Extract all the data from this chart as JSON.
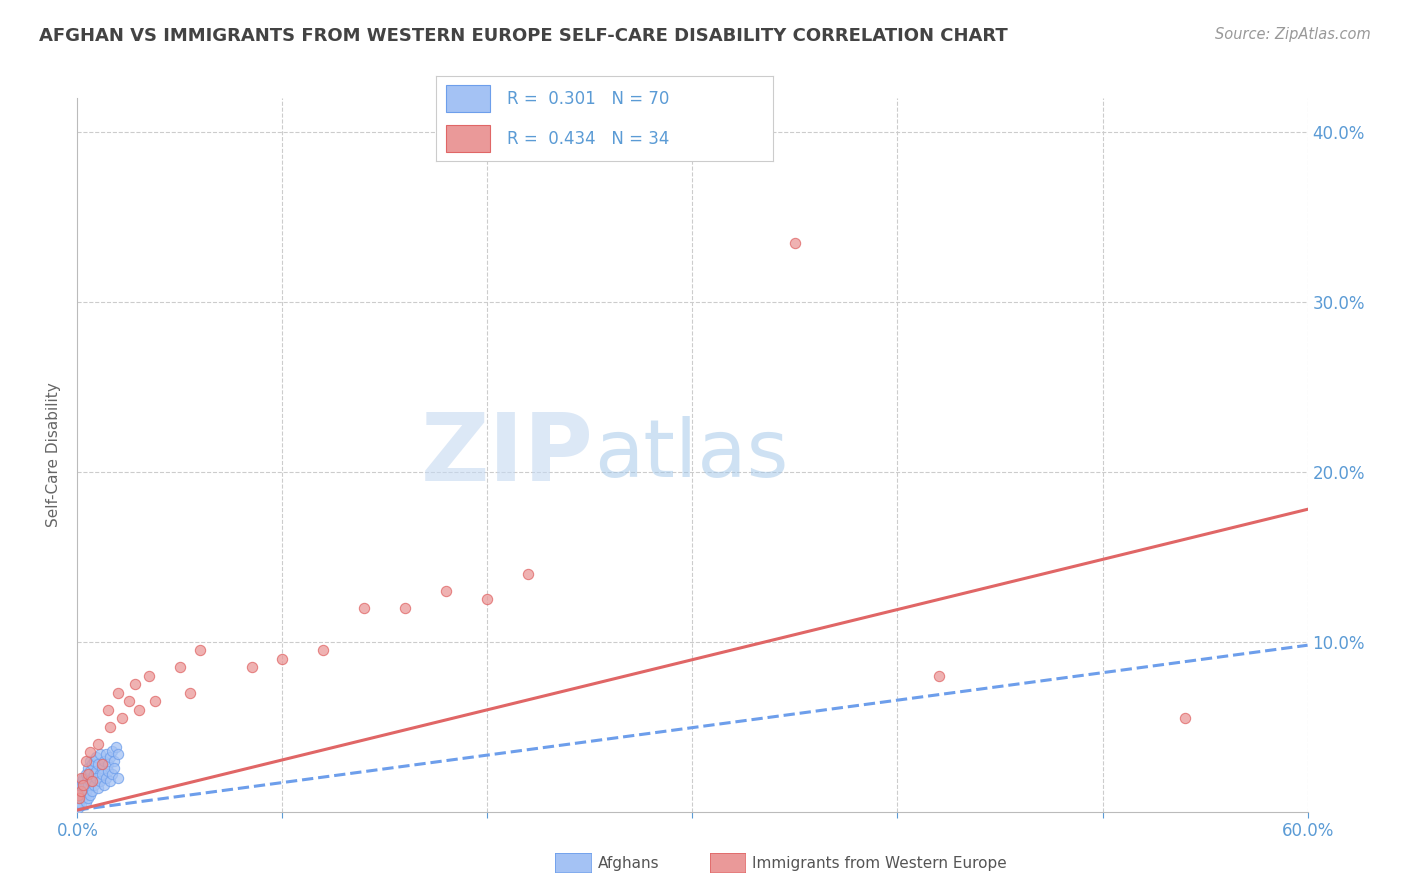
{
  "title": "AFGHAN VS IMMIGRANTS FROM WESTERN EUROPE SELF-CARE DISABILITY CORRELATION CHART",
  "source": "Source: ZipAtlas.com",
  "ylabel": "Self-Care Disability",
  "xlim": [
    0.0,
    0.6
  ],
  "ylim": [
    0.0,
    0.42
  ],
  "background_color": "#ffffff",
  "grid_color": "#cccccc",
  "afghan_color": "#a4c2f4",
  "afghan_edge_color": "#6d9eeb",
  "western_color": "#ea9999",
  "western_edge_color": "#e06666",
  "afghan_trend_color": "#6d9eeb",
  "western_trend_color": "#e06666",
  "legend_label_afghan": "Afghans",
  "legend_label_western": "Immigrants from Western Europe",
  "watermark_ZIP": "ZIP",
  "watermark_atlas": "atlas",
  "afghan_x": [
    0.0005,
    0.001,
    0.001,
    0.001,
    0.0015,
    0.0015,
    0.002,
    0.002,
    0.002,
    0.0025,
    0.0025,
    0.003,
    0.003,
    0.003,
    0.0035,
    0.004,
    0.004,
    0.004,
    0.0045,
    0.005,
    0.005,
    0.005,
    0.006,
    0.006,
    0.006,
    0.007,
    0.007,
    0.008,
    0.008,
    0.009,
    0.009,
    0.01,
    0.01,
    0.011,
    0.011,
    0.012,
    0.013,
    0.014,
    0.015,
    0.016,
    0.017,
    0.018,
    0.019,
    0.02,
    0.0005,
    0.001,
    0.001,
    0.002,
    0.002,
    0.003,
    0.003,
    0.004,
    0.004,
    0.005,
    0.005,
    0.006,
    0.006,
    0.007,
    0.008,
    0.009,
    0.01,
    0.011,
    0.012,
    0.013,
    0.014,
    0.015,
    0.016,
    0.017,
    0.018,
    0.02
  ],
  "afghan_y": [
    0.004,
    0.006,
    0.008,
    0.01,
    0.01,
    0.014,
    0.008,
    0.012,
    0.016,
    0.01,
    0.018,
    0.012,
    0.016,
    0.02,
    0.014,
    0.01,
    0.016,
    0.022,
    0.018,
    0.014,
    0.02,
    0.026,
    0.018,
    0.024,
    0.03,
    0.02,
    0.028,
    0.022,
    0.03,
    0.024,
    0.032,
    0.018,
    0.028,
    0.022,
    0.034,
    0.026,
    0.03,
    0.034,
    0.028,
    0.032,
    0.036,
    0.03,
    0.038,
    0.034,
    0.002,
    0.004,
    0.006,
    0.004,
    0.01,
    0.008,
    0.014,
    0.006,
    0.012,
    0.008,
    0.016,
    0.01,
    0.018,
    0.012,
    0.016,
    0.02,
    0.014,
    0.018,
    0.022,
    0.016,
    0.02,
    0.024,
    0.018,
    0.022,
    0.026,
    0.02
  ],
  "western_x": [
    0.0005,
    0.001,
    0.002,
    0.002,
    0.003,
    0.004,
    0.005,
    0.006,
    0.007,
    0.01,
    0.012,
    0.015,
    0.016,
    0.02,
    0.022,
    0.025,
    0.028,
    0.03,
    0.035,
    0.038,
    0.05,
    0.055,
    0.06,
    0.085,
    0.1,
    0.12,
    0.14,
    0.16,
    0.18,
    0.2,
    0.22,
    0.35,
    0.42,
    0.54
  ],
  "western_y": [
    0.01,
    0.008,
    0.012,
    0.02,
    0.016,
    0.03,
    0.022,
    0.035,
    0.018,
    0.04,
    0.028,
    0.06,
    0.05,
    0.07,
    0.055,
    0.065,
    0.075,
    0.06,
    0.08,
    0.065,
    0.085,
    0.07,
    0.095,
    0.085,
    0.09,
    0.095,
    0.12,
    0.12,
    0.13,
    0.125,
    0.14,
    0.335,
    0.08,
    0.055
  ]
}
